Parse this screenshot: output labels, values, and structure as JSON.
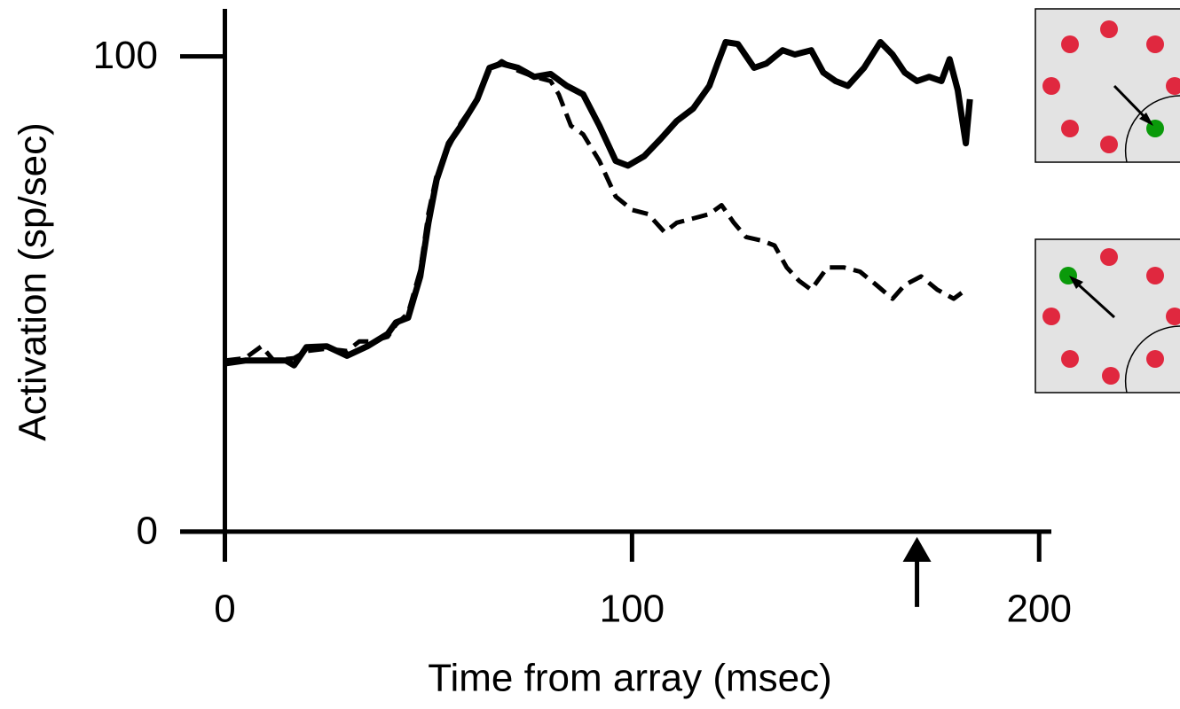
{
  "chart_data": {
    "type": "line",
    "x_label": "Time from array (msec)",
    "y_label": "Activation (sp/sec)",
    "xlim": [
      -11,
      203
    ],
    "ylim": [
      -6,
      110
    ],
    "xticks": [
      0,
      100,
      200
    ],
    "yticks": [
      0,
      100
    ],
    "marker_x": 170,
    "series": [
      {
        "color": "#000000",
        "dashed": false,
        "x": [
          0,
          5,
          10,
          15,
          17,
          20,
          25,
          30,
          35,
          40,
          42,
          45,
          48,
          50,
          52,
          55,
          58,
          62,
          65,
          68,
          72,
          76,
          80,
          84,
          88,
          92,
          96,
          99,
          103,
          107,
          111,
          115,
          119,
          121,
          123,
          126,
          130,
          133,
          137,
          140,
          144,
          147,
          150,
          153,
          157,
          161,
          164,
          167,
          170,
          173,
          176,
          178,
          180,
          181,
          182,
          183
        ],
        "values": [
          35.4,
          36,
          36,
          36,
          35,
          38.8,
          39,
          37,
          39,
          41.6,
          44,
          45,
          53.7,
          65,
          74,
          81.7,
          85.4,
          91,
          97.6,
          98.5,
          97.6,
          95.7,
          96.3,
          93.8,
          92,
          85.4,
          78,
          77,
          79,
          82.6,
          86.4,
          89,
          93.8,
          98.5,
          103,
          102.6,
          97.6,
          98.5,
          101.3,
          100.4,
          101.3,
          96.6,
          94.8,
          93.8,
          97.6,
          103,
          100.4,
          96.6,
          94.8,
          95.7,
          94.8,
          99.4,
          92.9,
          87.3,
          81.7,
          91
        ]
      },
      {
        "color": "#000000",
        "dashed": true,
        "x": [
          0,
          5,
          9,
          12,
          17,
          20,
          25,
          30,
          33,
          36,
          40,
          42,
          45,
          48,
          50,
          52,
          55,
          58,
          62,
          65,
          68,
          72,
          76,
          80,
          82,
          85,
          88,
          92,
          96,
          100,
          104,
          108,
          111,
          115,
          119,
          122,
          125,
          128,
          132,
          135,
          138,
          141,
          144,
          148,
          152,
          156,
          160,
          164,
          167,
          171,
          175,
          179,
          182
        ],
        "values": [
          36,
          36.5,
          39,
          36,
          36.5,
          38,
          38.5,
          38,
          40,
          40,
          41,
          43.5,
          46,
          55,
          67,
          75,
          81,
          86,
          91,
          97,
          99,
          97,
          95.7,
          94.8,
          92,
          85.4,
          83.6,
          78,
          70.5,
          67.7,
          66.8,
          63,
          65,
          65.9,
          66.8,
          68.7,
          65,
          62,
          61.2,
          60.2,
          55.6,
          52.8,
          50.9,
          55.6,
          55.6,
          54.7,
          51.9,
          49,
          51.9,
          53.7,
          50.9,
          49,
          50.9
        ]
      }
    ]
  }
}
